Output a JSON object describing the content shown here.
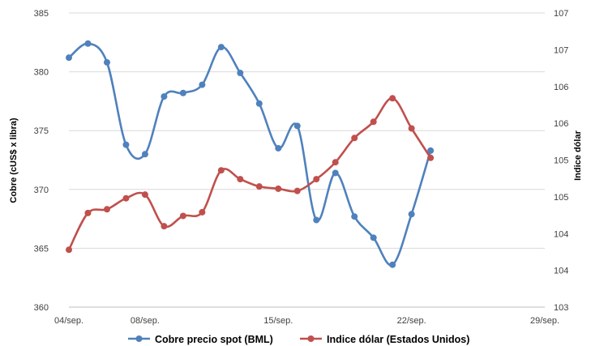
{
  "chart_data": {
    "type": "line",
    "categories": [
      "04/sep.",
      "05/sep.",
      "06/sep.",
      "07/sep.",
      "08/sep.",
      "09/sep.",
      "10/sep.",
      "11/sep.",
      "12/sep.",
      "13/sep.",
      "14/sep.",
      "15/sep.",
      "16/sep.",
      "17/sep.",
      "18/sep.",
      "19/sep.",
      "20/sep.",
      "21/sep.",
      "22/sep.",
      "23/sep.",
      "24/sep.",
      "25/sep.",
      "26/sep.",
      "27/sep.",
      "28/sep.",
      "29/sep."
    ],
    "x_tick_labels": [
      "04/sep.",
      "08/sep.",
      "15/sep.",
      "22/sep.",
      "29/sep."
    ],
    "ylabel": "Cobre (cUS$ x libra)",
    "y2label": "Indice dólar",
    "ylim": [
      360,
      385
    ],
    "y_ticks": [
      "360",
      "365",
      "370",
      "375",
      "380",
      "385"
    ],
    "y2lim": [
      103,
      107
    ],
    "y2_ticks": [
      "103",
      "104",
      "104",
      "105",
      "105",
      "106",
      "106",
      "107",
      "107"
    ],
    "legend_position": "bottom",
    "grid": "horizontal",
    "series": [
      {
        "name": "Cobre precio spot (BML)",
        "axis": "left",
        "color": "#4F81BD",
        "points": [
          {
            "x": "04/sep.",
            "y": 381.2
          },
          {
            "x": "05/sep.",
            "y": 382.4
          },
          {
            "x": "06/sep.",
            "y": 380.8
          },
          {
            "x": "07/sep.",
            "y": 373.8
          },
          {
            "x": "08/sep.",
            "y": 373.0
          },
          {
            "x": "09/sep.",
            "y": 377.9
          },
          {
            "x": "10/sep.",
            "y": 378.2
          },
          {
            "x": "11/sep.",
            "y": 378.9
          },
          {
            "x": "12/sep.",
            "y": 382.1
          },
          {
            "x": "13/sep.",
            "y": 379.9
          },
          {
            "x": "14/sep.",
            "y": 377.3
          },
          {
            "x": "15/sep.",
            "y": 373.5
          },
          {
            "x": "16/sep.",
            "y": 375.4
          },
          {
            "x": "17/sep.",
            "y": 367.4
          },
          {
            "x": "18/sep.",
            "y": 371.4
          },
          {
            "x": "19/sep.",
            "y": 367.7
          },
          {
            "x": "20/sep.",
            "y": 365.9
          },
          {
            "x": "21/sep.",
            "y": 363.6
          },
          {
            "x": "22/sep.",
            "y": 367.9
          },
          {
            "x": "23/sep.",
            "y": 373.3
          }
        ]
      },
      {
        "name": "Indice dólar (Estados Unidos)",
        "axis": "right",
        "color": "#C0504D",
        "points": [
          {
            "x": "04/sep.",
            "y": 103.78
          },
          {
            "x": "05/sep.",
            "y": 104.28
          },
          {
            "x": "06/sep.",
            "y": 104.33
          },
          {
            "x": "07/sep.",
            "y": 104.48
          },
          {
            "x": "08/sep.",
            "y": 104.53
          },
          {
            "x": "09/sep.",
            "y": 104.1
          },
          {
            "x": "10/sep.",
            "y": 104.24
          },
          {
            "x": "11/sep.",
            "y": 104.29
          },
          {
            "x": "12/sep.",
            "y": 104.86
          },
          {
            "x": "13/sep.",
            "y": 104.74
          },
          {
            "x": "14/sep.",
            "y": 104.64
          },
          {
            "x": "15/sep.",
            "y": 104.61
          },
          {
            "x": "16/sep.",
            "y": 104.58
          },
          {
            "x": "17/sep.",
            "y": 104.74
          },
          {
            "x": "18/sep.",
            "y": 104.97
          },
          {
            "x": "19/sep.",
            "y": 105.3
          },
          {
            "x": "20/sep.",
            "y": 105.52
          },
          {
            "x": "21/sep.",
            "y": 105.84
          },
          {
            "x": "22/sep.",
            "y": 105.43
          },
          {
            "x": "23/sep.",
            "y": 105.03
          }
        ]
      }
    ]
  }
}
